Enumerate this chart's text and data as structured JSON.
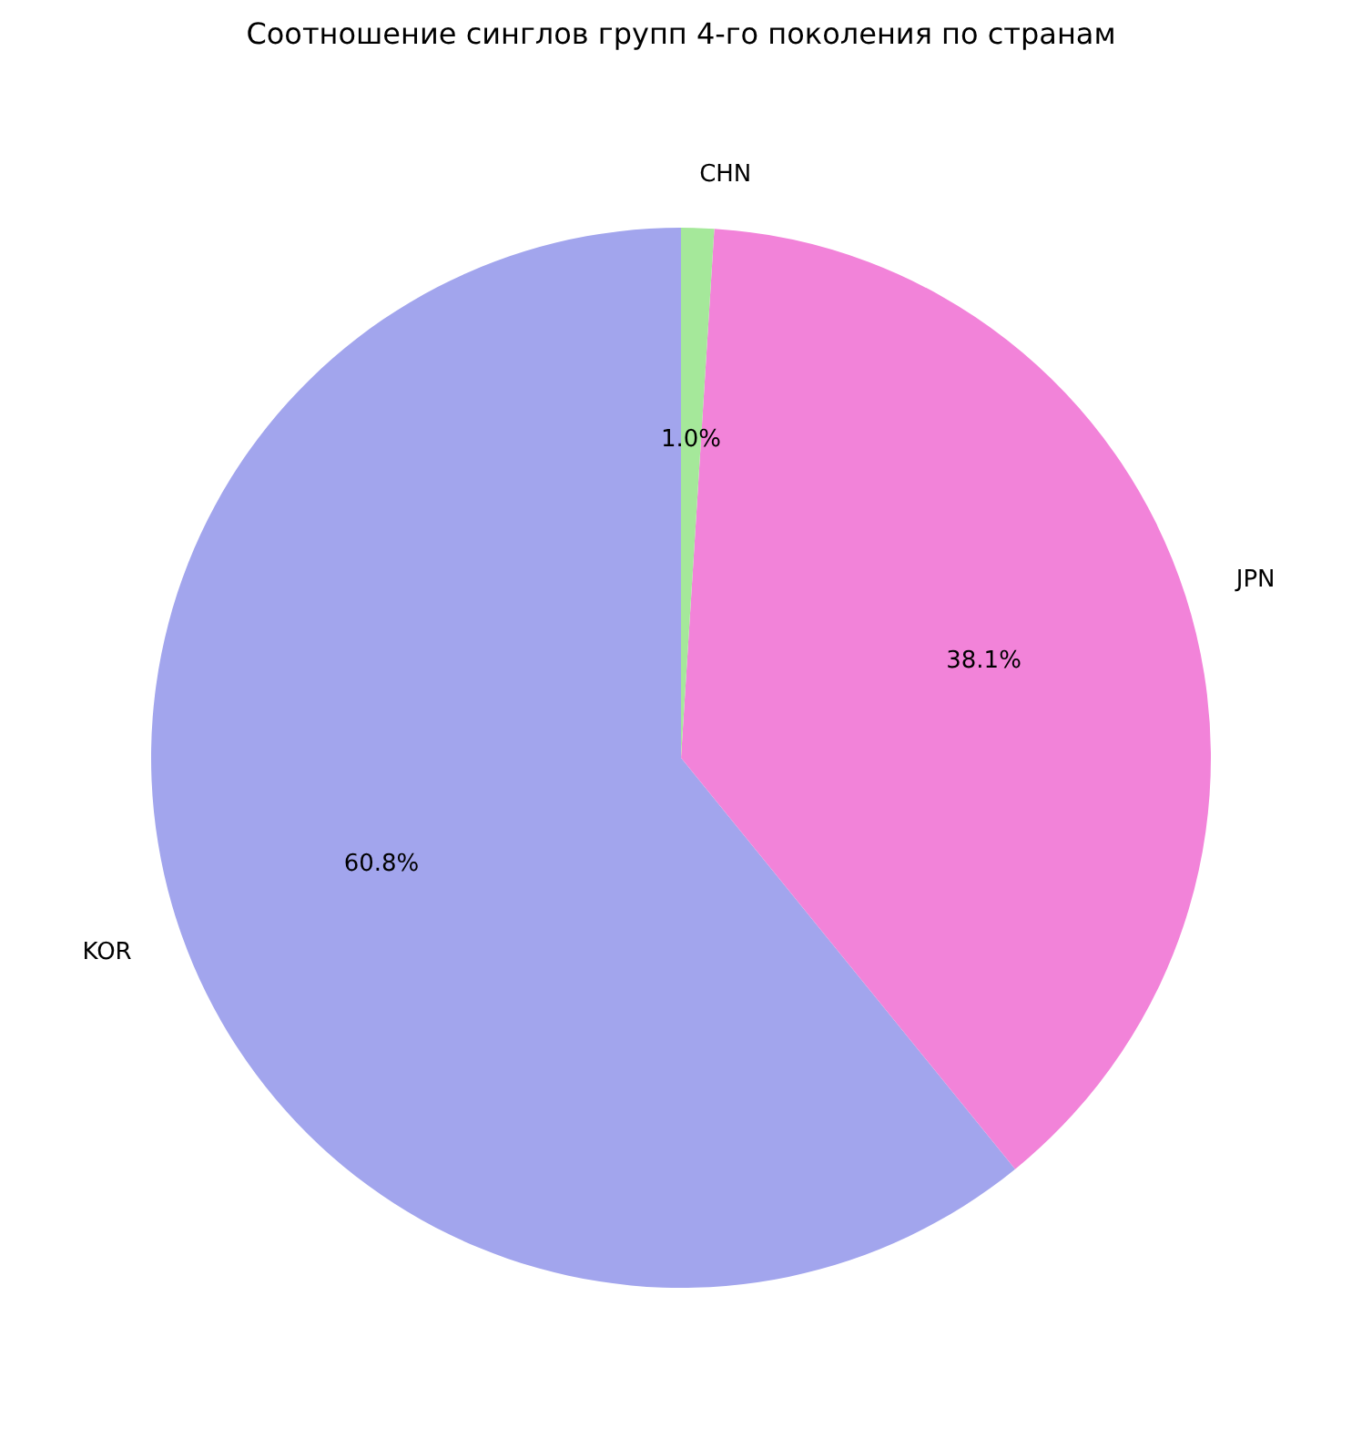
{
  "chart_data": {
    "type": "pie",
    "title": "Соотношение синглов групп 4-го поколения по странам",
    "categories": [
      "KOR",
      "JPN",
      "CHN"
    ],
    "values": [
      60.8,
      38.1,
      1.0
    ],
    "value_labels": [
      "60.8%",
      "38.1%",
      "1.0%"
    ],
    "colors": [
      "#a2a5ed",
      "#f283d9",
      "#a5e89a"
    ]
  }
}
